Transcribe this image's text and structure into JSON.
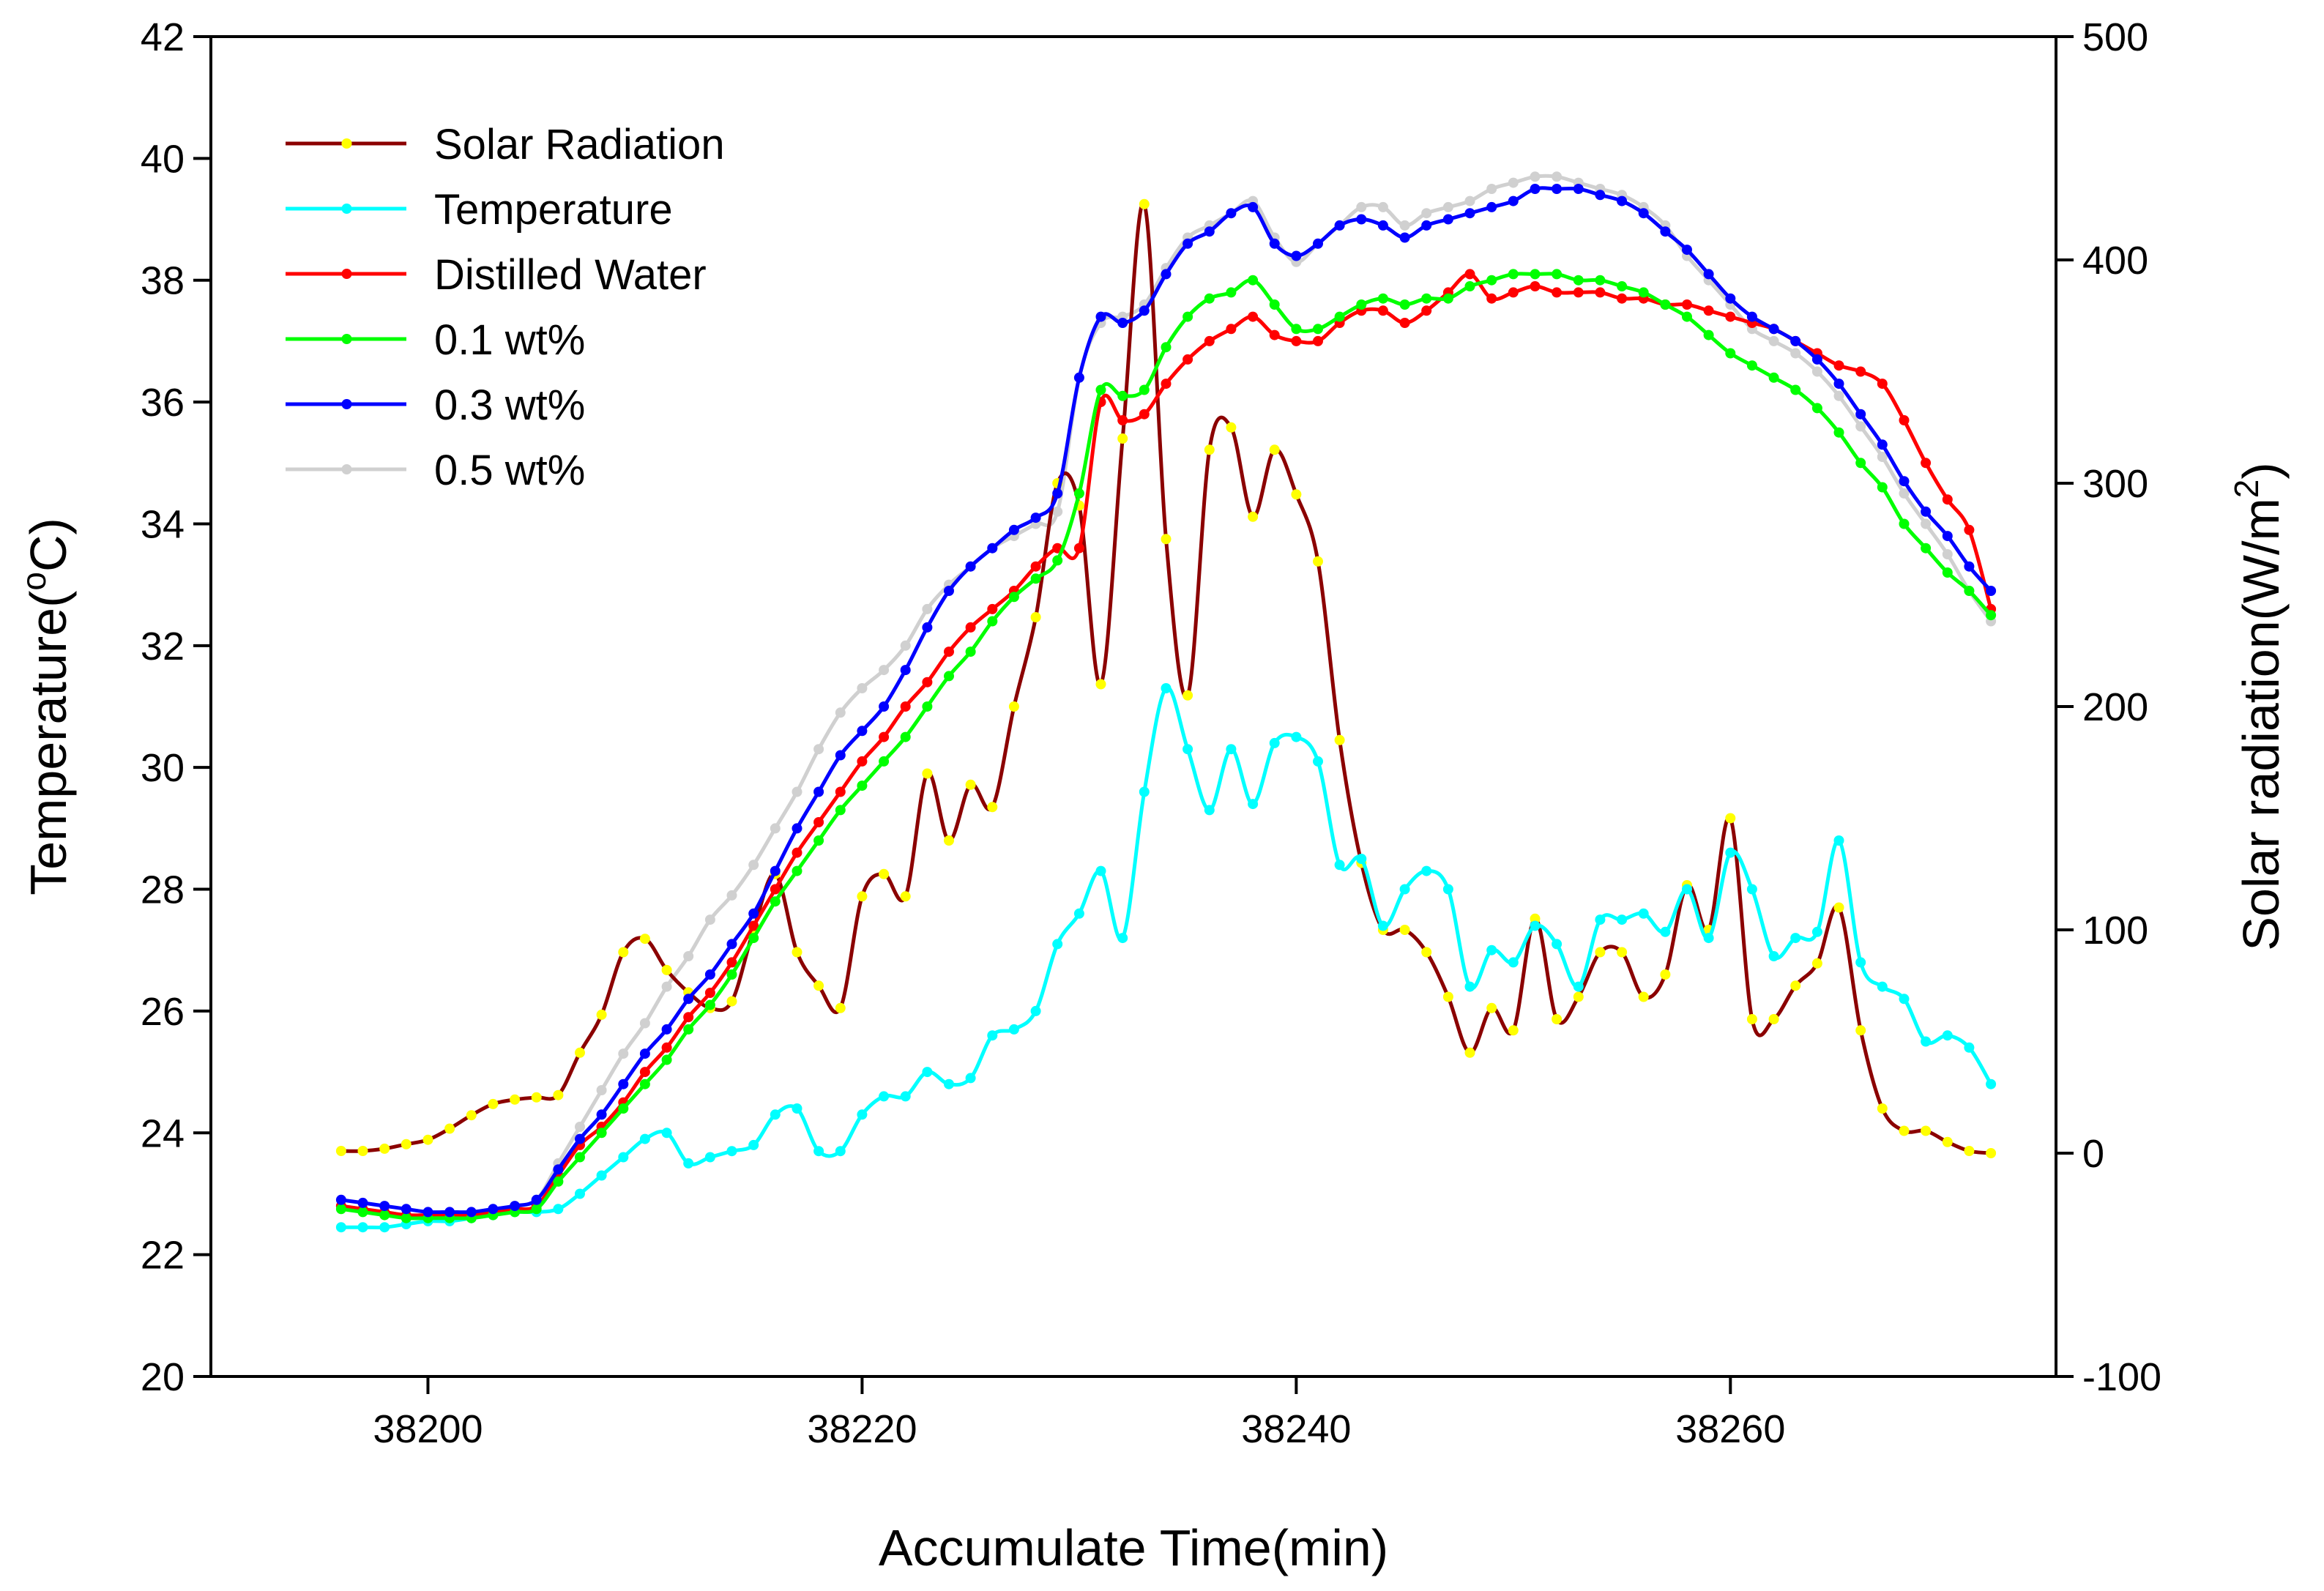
{
  "chart_data": {
    "type": "line",
    "title": "",
    "xlabel": "Accumulate Time(min)",
    "ylabel": {
      "base": "Temperature(",
      "sup": "o",
      "tail": "C)"
    },
    "y2label": {
      "base": "Solar radiation(W/m",
      "sup": "2",
      "tail": ")"
    },
    "xlim": [
      38190,
      38275
    ],
    "ylim": [
      20,
      42
    ],
    "y2lim": [
      -100,
      500
    ],
    "xticks": [
      38200,
      38220,
      38240,
      38260
    ],
    "yticks": [
      20,
      22,
      24,
      26,
      28,
      30,
      32,
      34,
      36,
      38,
      40,
      42
    ],
    "y2ticks": [
      -100,
      0,
      100,
      200,
      300,
      400,
      500
    ],
    "grid": false,
    "legend_position": "top-left",
    "series": [
      {
        "name": "Solar Radiation",
        "axis": "right",
        "color": "#8B0000",
        "marker_color": "#FFFF00",
        "x": [
          38196,
          38197,
          38198,
          38199,
          38200,
          38201,
          38202,
          38203,
          38204,
          38205,
          38206,
          38207,
          38208,
          38209,
          38210,
          38211,
          38212,
          38213,
          38214,
          38215,
          38216,
          38217,
          38218,
          38219,
          38220,
          38221,
          38222,
          38223,
          38224,
          38225,
          38226,
          38227,
          38228,
          38229,
          38230,
          38231,
          38232,
          38233,
          38234,
          38235,
          38236,
          38237,
          38238,
          38239,
          38240,
          38241,
          38242,
          38243,
          38244,
          38245,
          38246,
          38247,
          38248,
          38249,
          38250,
          38251,
          38252,
          38253,
          38254,
          38255,
          38256,
          38257,
          38258,
          38259,
          38260,
          38261,
          38262,
          38263,
          38264,
          38265,
          38266,
          38267,
          38268,
          38269,
          38270,
          38271,
          38272
        ],
        "y": [
          1,
          1,
          2,
          4,
          6,
          11,
          17,
          22,
          24,
          25,
          26,
          45,
          62,
          90,
          96,
          82,
          72,
          65,
          68,
          100,
          125,
          90,
          75,
          65,
          115,
          125,
          115,
          170,
          140,
          165,
          155,
          200,
          240,
          300,
          290,
          210,
          320,
          425,
          275,
          205,
          315,
          325,
          285,
          315,
          295,
          265,
          185,
          130,
          100,
          100,
          90,
          70,
          45,
          65,
          55,
          105,
          60,
          70,
          90,
          90,
          70,
          80,
          120,
          100,
          150,
          60,
          60,
          75,
          85,
          110,
          55,
          20,
          10,
          10,
          5,
          1,
          0
        ]
      },
      {
        "name": "Temperature",
        "axis": "left",
        "color": "#00FFFF",
        "marker_color": "#00FFFF",
        "x": [
          38196,
          38197,
          38198,
          38199,
          38200,
          38201,
          38202,
          38203,
          38204,
          38205,
          38206,
          38207,
          38208,
          38209,
          38210,
          38211,
          38212,
          38213,
          38214,
          38215,
          38216,
          38217,
          38218,
          38219,
          38220,
          38221,
          38222,
          38223,
          38224,
          38225,
          38226,
          38227,
          38228,
          38229,
          38230,
          38231,
          38232,
          38233,
          38234,
          38235,
          38236,
          38237,
          38238,
          38239,
          38240,
          38241,
          38242,
          38243,
          38244,
          38245,
          38246,
          38247,
          38248,
          38249,
          38250,
          38251,
          38252,
          38253,
          38254,
          38255,
          38256,
          38257,
          38258,
          38259,
          38260,
          38261,
          38262,
          38263,
          38264,
          38265,
          38266,
          38267,
          38268,
          38269,
          38270,
          38271,
          38272
        ],
        "y": [
          22.45,
          22.45,
          22.45,
          22.5,
          22.55,
          22.55,
          22.6,
          22.65,
          22.7,
          22.7,
          22.75,
          23.0,
          23.3,
          23.6,
          23.9,
          24.0,
          23.5,
          23.6,
          23.7,
          23.8,
          24.3,
          24.4,
          23.7,
          23.7,
          24.3,
          24.6,
          24.6,
          25.0,
          24.8,
          24.9,
          25.6,
          25.7,
          26.0,
          27.1,
          27.6,
          28.3,
          27.2,
          29.6,
          31.3,
          30.3,
          29.3,
          30.3,
          29.4,
          30.4,
          30.5,
          30.1,
          28.4,
          28.5,
          27.4,
          28.0,
          28.3,
          28.0,
          26.4,
          27.0,
          26.8,
          27.4,
          27.1,
          26.4,
          27.5,
          27.5,
          27.6,
          27.3,
          28.0,
          27.2,
          28.6,
          28.0,
          26.9,
          27.2,
          27.3,
          28.8,
          26.8,
          26.4,
          26.2,
          25.5,
          25.6,
          25.4,
          24.8
        ]
      },
      {
        "name": "Distilled Water",
        "axis": "left",
        "color": "#FF0000",
        "marker_color": "#FF0000",
        "x": [
          38196,
          38197,
          38198,
          38199,
          38200,
          38201,
          38202,
          38203,
          38204,
          38205,
          38206,
          38207,
          38208,
          38209,
          38210,
          38211,
          38212,
          38213,
          38214,
          38215,
          38216,
          38217,
          38218,
          38219,
          38220,
          38221,
          38222,
          38223,
          38224,
          38225,
          38226,
          38227,
          38228,
          38229,
          38230,
          38231,
          38232,
          38233,
          38234,
          38235,
          38236,
          38237,
          38238,
          38239,
          38240,
          38241,
          38242,
          38243,
          38244,
          38245,
          38246,
          38247,
          38248,
          38249,
          38250,
          38251,
          38252,
          38253,
          38254,
          38255,
          38256,
          38257,
          38258,
          38259,
          38260,
          38261,
          38262,
          38263,
          38264,
          38265,
          38266,
          38267,
          38268,
          38269,
          38270,
          38271,
          38272
        ],
        "y": [
          22.8,
          22.75,
          22.7,
          22.65,
          22.65,
          22.65,
          22.65,
          22.7,
          22.75,
          22.8,
          23.3,
          23.8,
          24.1,
          24.5,
          25.0,
          25.4,
          25.9,
          26.3,
          26.8,
          27.4,
          28.0,
          28.6,
          29.1,
          29.6,
          30.1,
          30.5,
          31.0,
          31.4,
          31.9,
          32.3,
          32.6,
          32.9,
          33.3,
          33.6,
          33.6,
          36.0,
          35.7,
          35.8,
          36.3,
          36.7,
          37.0,
          37.2,
          37.4,
          37.1,
          37.0,
          37.0,
          37.3,
          37.5,
          37.5,
          37.3,
          37.5,
          37.8,
          38.1,
          37.7,
          37.8,
          37.9,
          37.8,
          37.8,
          37.8,
          37.7,
          37.7,
          37.6,
          37.6,
          37.5,
          37.4,
          37.3,
          37.2,
          37.0,
          36.8,
          36.6,
          36.5,
          36.3,
          35.7,
          35.0,
          34.4,
          33.9,
          32.6
        ]
      },
      {
        "name": "0.1 wt%",
        "axis": "left",
        "color": "#00FF00",
        "marker_color": "#00FF00",
        "x": [
          38196,
          38197,
          38198,
          38199,
          38200,
          38201,
          38202,
          38203,
          38204,
          38205,
          38206,
          38207,
          38208,
          38209,
          38210,
          38211,
          38212,
          38213,
          38214,
          38215,
          38216,
          38217,
          38218,
          38219,
          38220,
          38221,
          38222,
          38223,
          38224,
          38225,
          38226,
          38227,
          38228,
          38229,
          38230,
          38231,
          38232,
          38233,
          38234,
          38235,
          38236,
          38237,
          38238,
          38239,
          38240,
          38241,
          38242,
          38243,
          38244,
          38245,
          38246,
          38247,
          38248,
          38249,
          38250,
          38251,
          38252,
          38253,
          38254,
          38255,
          38256,
          38257,
          38258,
          38259,
          38260,
          38261,
          38262,
          38263,
          38264,
          38265,
          38266,
          38267,
          38268,
          38269,
          38270,
          38271,
          38272
        ],
        "y": [
          22.75,
          22.7,
          22.65,
          22.6,
          22.6,
          22.6,
          22.6,
          22.65,
          22.7,
          22.75,
          23.2,
          23.6,
          24.0,
          24.4,
          24.8,
          25.2,
          25.7,
          26.1,
          26.6,
          27.2,
          27.8,
          28.3,
          28.8,
          29.3,
          29.7,
          30.1,
          30.5,
          31.0,
          31.5,
          31.9,
          32.4,
          32.8,
          33.1,
          33.4,
          34.5,
          36.2,
          36.1,
          36.2,
          36.9,
          37.4,
          37.7,
          37.8,
          38.0,
          37.6,
          37.2,
          37.2,
          37.4,
          37.6,
          37.7,
          37.6,
          37.7,
          37.7,
          37.9,
          38.0,
          38.1,
          38.1,
          38.1,
          38.0,
          38.0,
          37.9,
          37.8,
          37.6,
          37.4,
          37.1,
          36.8,
          36.6,
          36.4,
          36.2,
          35.9,
          35.5,
          35.0,
          34.6,
          34.0,
          33.6,
          33.2,
          32.9,
          32.5
        ]
      },
      {
        "name": "0.3 wt%",
        "axis": "left",
        "color": "#0000FF",
        "marker_color": "#0000FF",
        "x": [
          38196,
          38197,
          38198,
          38199,
          38200,
          38201,
          38202,
          38203,
          38204,
          38205,
          38206,
          38207,
          38208,
          38209,
          38210,
          38211,
          38212,
          38213,
          38214,
          38215,
          38216,
          38217,
          38218,
          38219,
          38220,
          38221,
          38222,
          38223,
          38224,
          38225,
          38226,
          38227,
          38228,
          38229,
          38230,
          38231,
          38232,
          38233,
          38234,
          38235,
          38236,
          38237,
          38238,
          38239,
          38240,
          38241,
          38242,
          38243,
          38244,
          38245,
          38246,
          38247,
          38248,
          38249,
          38250,
          38251,
          38252,
          38253,
          38254,
          38255,
          38256,
          38257,
          38258,
          38259,
          38260,
          38261,
          38262,
          38263,
          38264,
          38265,
          38266,
          38267,
          38268,
          38269,
          38270,
          38271,
          38272
        ],
        "y": [
          22.9,
          22.85,
          22.8,
          22.75,
          22.7,
          22.7,
          22.7,
          22.75,
          22.8,
          22.9,
          23.4,
          23.9,
          24.3,
          24.8,
          25.3,
          25.7,
          26.2,
          26.6,
          27.1,
          27.6,
          28.3,
          29.0,
          29.6,
          30.2,
          30.6,
          31.0,
          31.6,
          32.3,
          32.9,
          33.3,
          33.6,
          33.9,
          34.1,
          34.5,
          36.4,
          37.4,
          37.3,
          37.5,
          38.1,
          38.6,
          38.8,
          39.1,
          39.2,
          38.6,
          38.4,
          38.6,
          38.9,
          39.0,
          38.9,
          38.7,
          38.9,
          39.0,
          39.1,
          39.2,
          39.3,
          39.5,
          39.5,
          39.5,
          39.4,
          39.3,
          39.1,
          38.8,
          38.5,
          38.1,
          37.7,
          37.4,
          37.2,
          37.0,
          36.7,
          36.3,
          35.8,
          35.3,
          34.7,
          34.2,
          33.8,
          33.3,
          32.9
        ]
      },
      {
        "name": "0.5 wt%",
        "axis": "left",
        "color": "#D0D0D0",
        "marker_color": "#D0D0D0",
        "x": [
          38196,
          38197,
          38198,
          38199,
          38200,
          38201,
          38202,
          38203,
          38204,
          38205,
          38206,
          38207,
          38208,
          38209,
          38210,
          38211,
          38212,
          38213,
          38214,
          38215,
          38216,
          38217,
          38218,
          38219,
          38220,
          38221,
          38222,
          38223,
          38224,
          38225,
          38226,
          38227,
          38228,
          38229,
          38230,
          38231,
          38232,
          38233,
          38234,
          38235,
          38236,
          38237,
          38238,
          38239,
          38240,
          38241,
          38242,
          38243,
          38244,
          38245,
          38246,
          38247,
          38248,
          38249,
          38250,
          38251,
          38252,
          38253,
          38254,
          38255,
          38256,
          38257,
          38258,
          38259,
          38260,
          38261,
          38262,
          38263,
          38264,
          38265,
          38266,
          38267,
          38268,
          38269,
          38270,
          38271,
          38272
        ],
        "y": [
          22.8,
          22.75,
          22.7,
          22.65,
          22.65,
          22.65,
          22.65,
          22.7,
          22.8,
          22.9,
          23.5,
          24.1,
          24.7,
          25.3,
          25.8,
          26.4,
          26.9,
          27.5,
          27.9,
          28.4,
          29.0,
          29.6,
          30.3,
          30.9,
          31.3,
          31.6,
          32.0,
          32.6,
          33.0,
          33.3,
          33.6,
          33.8,
          34.0,
          34.2,
          36.4,
          37.3,
          37.4,
          37.6,
          38.2,
          38.7,
          38.9,
          39.1,
          39.3,
          38.7,
          38.3,
          38.6,
          38.9,
          39.2,
          39.2,
          38.9,
          39.1,
          39.2,
          39.3,
          39.5,
          39.6,
          39.7,
          39.7,
          39.6,
          39.5,
          39.4,
          39.2,
          38.9,
          38.4,
          38.0,
          37.6,
          37.2,
          37.0,
          36.8,
          36.5,
          36.1,
          35.6,
          35.1,
          34.5,
          34.0,
          33.5,
          32.9,
          32.4
        ]
      }
    ]
  }
}
